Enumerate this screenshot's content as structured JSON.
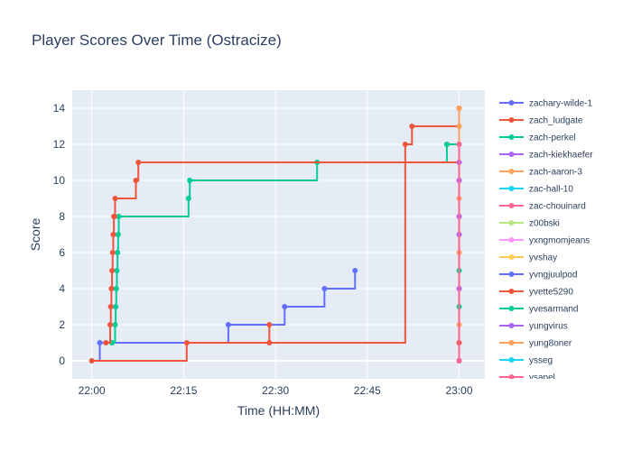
{
  "chart_data": {
    "type": "line",
    "line_shape": "step-after",
    "title": "Player Scores Over Time (Ostracize)",
    "xlabel": "Time (HH:MM)",
    "ylabel": "Score",
    "x_ticks": [
      "22:00",
      "22:15",
      "22:30",
      "22:45",
      "23:00"
    ],
    "x_tick_minutes": [
      0,
      15,
      30,
      45,
      60
    ],
    "xlim_minutes": [
      -3.2,
      64.2
    ],
    "y_ticks": [
      0,
      2,
      4,
      6,
      8,
      10,
      12,
      14
    ],
    "ylim": [
      -1.0,
      15.0
    ],
    "grid": true,
    "legend_position": "right",
    "colors": {
      "plot_bg": "#E5ECF6",
      "grid": "#ffffff",
      "text": "#2a3f5f"
    },
    "series": [
      {
        "name": "zachary-wilde-1",
        "color": "#636EFA",
        "x_minutes": [
          0.0,
          1.3,
          22.3,
          31.5,
          38.0,
          43.0
        ],
        "values": [
          0,
          1,
          2,
          3,
          4,
          5
        ]
      },
      {
        "name": "zach_ludgate",
        "color": "#EF553B",
        "x_minutes": [
          0.0,
          15.5,
          29.0,
          29.0,
          51.2,
          52.3,
          60.0
        ],
        "values": [
          0,
          1,
          2,
          1,
          12,
          13,
          14
        ]
      },
      {
        "name": "zach-perkel",
        "color": "#00CC96",
        "x_minutes": [
          3.3,
          3.8,
          3.9,
          4.0,
          4.1,
          4.2,
          4.3,
          4.4,
          15.8,
          16.0,
          36.8,
          58.0,
          60.0
        ],
        "values": [
          1,
          2,
          3,
          4,
          5,
          6,
          7,
          8,
          9,
          10,
          11,
          12,
          13
        ]
      },
      {
        "name": "zach-kiekhaefer",
        "color": "#AB63FA",
        "x_minutes": [
          60.0
        ],
        "values": [
          0
        ]
      },
      {
        "name": "zach-aaron-3",
        "color": "#FFA15A",
        "x_minutes": [
          60.0
        ],
        "values": [
          0
        ]
      },
      {
        "name": "zac-hall-10",
        "color": "#19D3F3",
        "x_minutes": [
          60.0
        ],
        "values": [
          0
        ]
      },
      {
        "name": "zac-chouinard",
        "color": "#FF6692",
        "x_minutes": [
          60.0
        ],
        "values": [
          0
        ]
      },
      {
        "name": "z00bski",
        "color": "#B6E880",
        "x_minutes": [
          60.0
        ],
        "values": [
          0
        ]
      },
      {
        "name": "yxngmomjeans",
        "color": "#FF97FF",
        "x_minutes": [
          60.0
        ],
        "values": [
          0
        ]
      },
      {
        "name": "yvshay",
        "color": "#FECB52",
        "x_minutes": [
          60.0
        ],
        "values": [
          0
        ]
      },
      {
        "name": "yvngjuulpod",
        "color": "#636EFA",
        "x_minutes": [
          60.0
        ],
        "values": [
          0
        ]
      },
      {
        "name": "yvette5290",
        "color": "#EF553B",
        "x_minutes": [
          2.3,
          3.0,
          3.1,
          3.2,
          3.3,
          3.4,
          3.5,
          3.6,
          3.7,
          3.8,
          7.2,
          7.6,
          60.0
        ],
        "values": [
          1,
          2,
          3,
          4,
          5,
          6,
          7,
          8,
          8,
          9,
          10,
          11,
          1
        ]
      },
      {
        "name": "yvesarmand",
        "color": "#00CC96",
        "x_minutes": [
          60.0,
          60.0
        ],
        "values": [
          3,
          5
        ]
      },
      {
        "name": "yungvirus",
        "color": "#AB63FA",
        "x_minutes": [
          60.0,
          60.0,
          60.0,
          60.0,
          60.0
        ],
        "values": [
          4,
          7,
          8,
          10,
          11
        ]
      },
      {
        "name": "yung8oner",
        "color": "#FFA15A",
        "x_minutes": [
          60.0,
          60.0,
          60.0,
          60.0,
          60.0
        ],
        "values": [
          2,
          6,
          9,
          13,
          14
        ]
      },
      {
        "name": "ysseg",
        "color": "#19D3F3",
        "x_minutes": [
          60.0
        ],
        "values": [
          0
        ]
      },
      {
        "name": "ysapel",
        "color": "#FF6692",
        "x_minutes": [
          60.0,
          60.0
        ],
        "values": [
          0,
          12
        ]
      }
    ]
  }
}
